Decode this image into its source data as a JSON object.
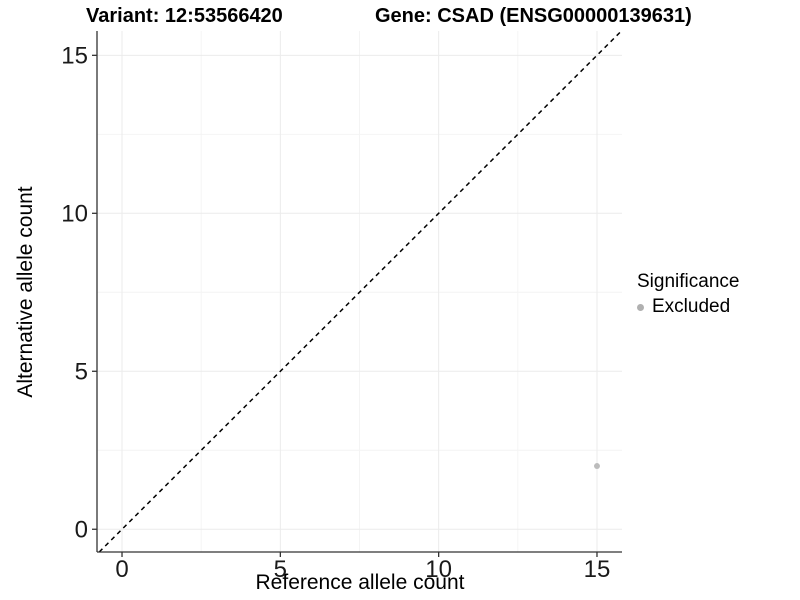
{
  "titles": {
    "variant": "Variant: 12:53566420",
    "gene": "Gene: CSAD (ENSG00000139631)"
  },
  "chart_data": {
    "type": "scatter",
    "title_left": "Variant: 12:53566420",
    "title_right": "Gene: CSAD (ENSG00000139631)",
    "xlabel": "Reference allele count",
    "ylabel": "Alternative allele count",
    "xlim": [
      -0.79,
      15.79
    ],
    "ylim": [
      -0.72,
      15.77
    ],
    "x_ticks": [
      0,
      5,
      10,
      15
    ],
    "y_ticks": [
      0,
      5,
      10,
      15
    ],
    "x_minor_ticks": [
      2.5,
      7.5,
      12.5
    ],
    "y_minor_ticks": [
      2.5,
      7.5,
      12.5
    ],
    "grid": true,
    "series": [
      {
        "name": "Excluded",
        "color": "#bcbcbc",
        "points": [
          {
            "x": 15,
            "y": 2
          }
        ]
      }
    ],
    "reference_line": {
      "type": "identity",
      "style": "dashed",
      "color": "#000000"
    },
    "legend": {
      "position": "right",
      "title": "Significance",
      "items": [
        {
          "label": "Excluded",
          "color": "#b0b0b0"
        }
      ]
    }
  },
  "colors": {
    "background": "#ffffff",
    "grid_major": "#ebebeb",
    "grid_minor": "#f4f4f4",
    "axis_line": "#333333",
    "tick_label": "#1a1a1a",
    "point": "#bcbcbc",
    "legend_dot": "#b0b0b0",
    "dashed_line": "#000000"
  }
}
